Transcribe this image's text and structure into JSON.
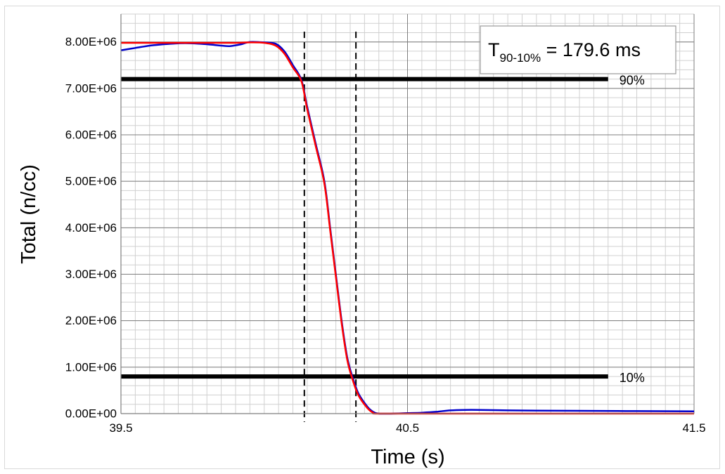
{
  "chart_data": {
    "type": "line",
    "title": "",
    "xlabel": "Time (s)",
    "ylabel": "Total (n/cc)",
    "xlim": [
      39.5,
      41.5
    ],
    "ylim": [
      0,
      8600000
    ],
    "x_ticks": [
      "39.5",
      "40.5",
      "41.5"
    ],
    "y_ticks": [
      "0.00E+00",
      "1.00E+06",
      "2.00E+06",
      "3.00E+06",
      "4.00E+06",
      "5.00E+06",
      "6.00E+06",
      "7.00E+06",
      "8.00E+06"
    ],
    "grid": true,
    "legend": "none",
    "series": [
      {
        "color": "#0000cc",
        "points": [
          [
            39.5,
            7820000
          ],
          [
            39.55,
            7870000
          ],
          [
            39.6,
            7920000
          ],
          [
            39.65,
            7950000
          ],
          [
            39.7,
            7970000
          ],
          [
            39.75,
            7970000
          ],
          [
            39.8,
            7950000
          ],
          [
            39.85,
            7920000
          ],
          [
            39.88,
            7910000
          ],
          [
            39.92,
            7950000
          ],
          [
            39.95,
            8000000
          ],
          [
            40.0,
            7990000
          ],
          [
            40.04,
            7960000
          ],
          [
            40.07,
            7800000
          ],
          [
            40.1,
            7500000
          ],
          [
            40.13,
            7180000
          ],
          [
            40.15,
            6600000
          ],
          [
            40.18,
            5800000
          ],
          [
            40.21,
            5000000
          ],
          [
            40.23,
            4000000
          ],
          [
            40.25,
            3000000
          ],
          [
            40.27,
            2000000
          ],
          [
            40.29,
            1200000
          ],
          [
            40.31,
            750000
          ],
          [
            40.33,
            420000
          ],
          [
            40.36,
            150000
          ],
          [
            40.38,
            40000
          ],
          [
            40.4,
            0
          ],
          [
            40.45,
            0
          ],
          [
            40.5,
            10000
          ],
          [
            40.55,
            20000
          ],
          [
            40.6,
            40000
          ],
          [
            40.65,
            70000
          ],
          [
            40.7,
            80000
          ],
          [
            40.75,
            80000
          ],
          [
            40.85,
            70000
          ],
          [
            40.95,
            65000
          ],
          [
            41.1,
            60000
          ],
          [
            41.3,
            55000
          ],
          [
            41.5,
            50000
          ]
        ]
      },
      {
        "color": "#ff0000",
        "points": [
          [
            39.5,
            7980000
          ],
          [
            39.6,
            7980000
          ],
          [
            39.7,
            7980000
          ],
          [
            39.8,
            7980000
          ],
          [
            39.9,
            7980000
          ],
          [
            39.95,
            7990000
          ],
          [
            40.0,
            7980000
          ],
          [
            40.04,
            7920000
          ],
          [
            40.07,
            7750000
          ],
          [
            40.1,
            7450000
          ],
          [
            40.13,
            7150000
          ],
          [
            40.15,
            6550000
          ],
          [
            40.18,
            5750000
          ],
          [
            40.21,
            4950000
          ],
          [
            40.23,
            3950000
          ],
          [
            40.25,
            2950000
          ],
          [
            40.27,
            1950000
          ],
          [
            40.29,
            1150000
          ],
          [
            40.31,
            700000
          ],
          [
            40.33,
            380000
          ],
          [
            40.36,
            120000
          ],
          [
            40.38,
            20000
          ],
          [
            40.4,
            0
          ],
          [
            40.6,
            0
          ],
          [
            40.8,
            0
          ],
          [
            41.0,
            0
          ],
          [
            41.2,
            0
          ],
          [
            41.5,
            0
          ]
        ]
      }
    ],
    "thresholds": [
      {
        "label": "90%",
        "y": 7200000,
        "x_end": 41.2
      },
      {
        "label": "10%",
        "y": 800000,
        "x_end": 41.2
      }
    ],
    "markers": [
      {
        "x": 40.14,
        "y_top": 8220000
      },
      {
        "x": 40.32,
        "y_top": 8220000
      }
    ],
    "annotation": {
      "T": "T",
      "sub": "90-10%",
      "rest": " = 179.6 ms"
    }
  }
}
